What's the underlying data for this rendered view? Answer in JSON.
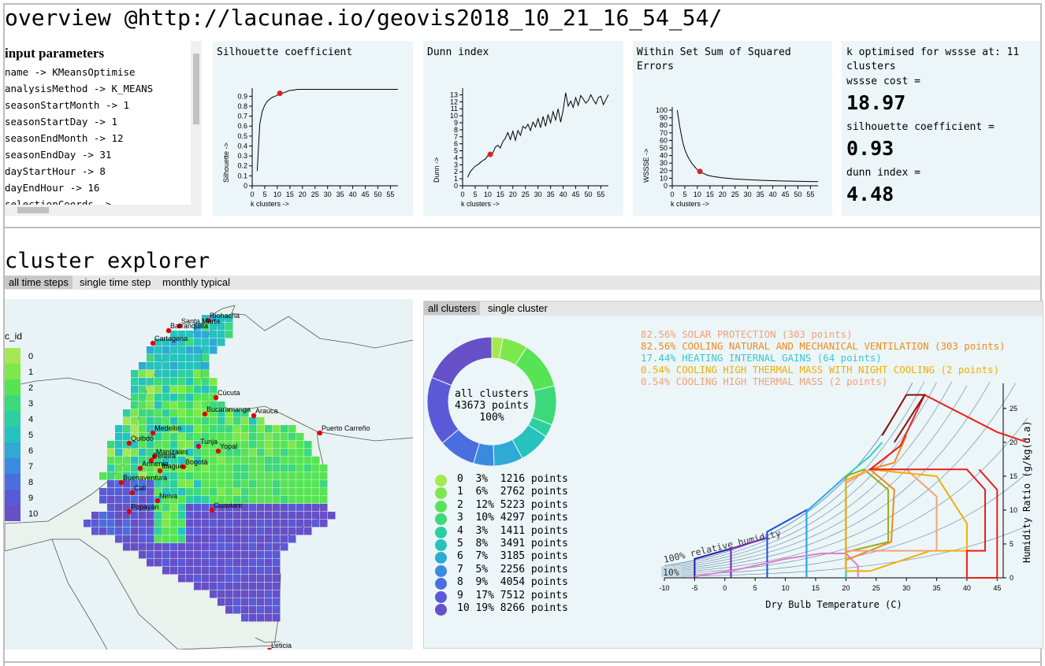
{
  "page": {
    "title": "overview @http://lacunae.io/geovis2018_10_21_16_54_54/"
  },
  "params": {
    "heading": "input parameters",
    "rows": [
      "name -> KMeansOptimise",
      "analysisMethod -> K_MEANS",
      "seasonStartMonth -> 1",
      "seasonStartDay -> 1",
      "seasonEndMonth -> 12",
      "seasonEndDay -> 31",
      "dayStartHour -> 8",
      "dayEndHour -> 16",
      "selectionCoords ->"
    ]
  },
  "charts": {
    "silhouette": {
      "title": "Silhouette coefficient",
      "ylabel": "Silhouette ->",
      "xlabel": "k clusters ->"
    },
    "dunn": {
      "title": "Dunn index",
      "ylabel": "Dunn ->",
      "xlabel": "k clusters ->"
    },
    "wssse": {
      "title": "Within Set Sum of Squared Errors",
      "ylabel": "WSSSE ->",
      "xlabel": "k clusters ->"
    }
  },
  "chart_data": [
    {
      "type": "line",
      "title": "Silhouette coefficient",
      "xlabel": "k clusters ->",
      "ylabel": "Silhouette ->",
      "x": [
        2,
        3,
        4,
        5,
        6,
        7,
        8,
        9,
        10,
        11,
        12,
        13,
        14,
        15,
        16,
        18,
        20,
        25,
        30,
        35,
        40,
        45,
        50,
        55,
        58
      ],
      "values": [
        0.15,
        0.62,
        0.75,
        0.81,
        0.85,
        0.87,
        0.89,
        0.9,
        0.91,
        0.93,
        0.93,
        0.94,
        0.95,
        0.96,
        0.96,
        0.97,
        0.97,
        0.97,
        0.97,
        0.97,
        0.97,
        0.97,
        0.97,
        0.97,
        0.97
      ],
      "xlim": [
        0,
        58
      ],
      "ylim": [
        0,
        0.95
      ],
      "xticks": [
        "0",
        "5",
        "10",
        "15",
        "20",
        "25",
        "30",
        "35",
        "40",
        "45",
        "50",
        "55"
      ],
      "yticks": [
        "0",
        "0.1",
        "0.2",
        "0.3",
        "0.4",
        "0.5",
        "0.6",
        "0.7",
        "0.8",
        "0.9"
      ],
      "highlight": {
        "x": 11,
        "y": 0.93
      }
    },
    {
      "type": "line",
      "title": "Dunn index",
      "xlabel": "k clusters ->",
      "ylabel": "Dunn ->",
      "x": [
        2,
        3,
        4,
        5,
        6,
        7,
        8,
        9,
        10,
        11,
        12,
        13,
        14,
        15,
        16,
        17,
        18,
        19,
        20,
        21,
        22,
        23,
        24,
        25,
        26,
        27,
        28,
        29,
        30,
        31,
        32,
        33,
        34,
        35,
        36,
        37,
        38,
        39,
        40,
        41,
        42,
        43,
        44,
        45,
        46,
        47,
        48,
        49,
        50,
        51,
        52,
        53,
        54,
        55,
        56,
        57,
        58
      ],
      "values": [
        1.2,
        2.0,
        2.4,
        2.8,
        3.0,
        3.3,
        3.6,
        3.8,
        4.3,
        4.48,
        4.7,
        5.5,
        5.8,
        5.4,
        6.3,
        6.8,
        7.6,
        6.6,
        7.8,
        6.5,
        7.9,
        7.2,
        8.5,
        8.2,
        8.8,
        7.9,
        9.1,
        8.4,
        9.6,
        8.3,
        9.9,
        8.5,
        10.2,
        9.0,
        10.6,
        9.4,
        11.0,
        9.1,
        10.8,
        13.3,
        11.4,
        12.1,
        11.2,
        12.6,
        11.5,
        12.9,
        12.4,
        11.8,
        12.2,
        13.0,
        12.3,
        11.7,
        12.6,
        12.8,
        11.6,
        12.3,
        13.0
      ],
      "xlim": [
        0,
        58
      ],
      "ylim": [
        0,
        13.5
      ],
      "xticks": [
        "0",
        "5",
        "10",
        "15",
        "20",
        "25",
        "30",
        "35",
        "40",
        "45",
        "50",
        "55"
      ],
      "yticks": [
        "0",
        "1",
        "2",
        "3",
        "4",
        "5",
        "6",
        "7",
        "8",
        "9",
        "10",
        "11",
        "12",
        "13"
      ],
      "highlight": {
        "x": 11,
        "y": 4.48
      }
    },
    {
      "type": "line",
      "title": "Within Set Sum of Squared Errors",
      "xlabel": "k clusters ->",
      "ylabel": "WSSSE ->",
      "x": [
        2,
        3,
        4,
        5,
        6,
        7,
        8,
        9,
        10,
        11,
        12,
        14,
        16,
        18,
        20,
        25,
        30,
        35,
        40,
        45,
        50,
        55,
        58
      ],
      "values": [
        100,
        78,
        60,
        48,
        40,
        34,
        29,
        25,
        21,
        18.97,
        17,
        14,
        12.5,
        11.5,
        10.5,
        9,
        8,
        7.3,
        6.8,
        6.3,
        5.9,
        5.6,
        5.4
      ],
      "xlim": [
        0,
        58
      ],
      "ylim": [
        0,
        100
      ],
      "xticks": [
        "0",
        "5",
        "10",
        "15",
        "20",
        "25",
        "30",
        "35",
        "40",
        "45",
        "50",
        "55"
      ],
      "yticks": [
        "0",
        "10",
        "20",
        "30",
        "40",
        "50",
        "60",
        "70",
        "80",
        "90",
        "100"
      ],
      "highlight": {
        "x": 11,
        "y": 18.97
      }
    }
  ],
  "kopt": {
    "title": "k optimised for wssse at: 11 clusters",
    "wssse_label": "wssse cost =",
    "wssse_value": "18.97",
    "sil_label": "silhouette coefficient =",
    "sil_value": "0.93",
    "dunn_label": "dunn index =",
    "dunn_value": "4.48"
  },
  "explorer": {
    "title": "cluster explorer",
    "tabs": [
      "all time steps",
      "single time step",
      "monthly typical"
    ],
    "sub_tabs": [
      "all clusters",
      "single cluster"
    ],
    "legend_title": "c_id",
    "color_ids": [
      "0",
      "1",
      "2",
      "3",
      "4",
      "5",
      "6",
      "7",
      "8",
      "9",
      "10"
    ],
    "colors": [
      "#a6e84f",
      "#7de84a",
      "#56e455",
      "#3cd97a",
      "#2ccfa0",
      "#26c2bd",
      "#2eaad4",
      "#3a8bdf",
      "#4a6ee0",
      "#5a5ad8",
      "#6650c8"
    ],
    "cities": [
      "Riohacha",
      "Santa Marta",
      "Barranquilla",
      "Cartagena",
      "Cúcuta",
      "Bucaramanga",
      "Arauca",
      "Puerto Carreño",
      "Medellín",
      "Quibdó",
      "Tunja",
      "Yopal",
      "Manizales",
      "Pereira",
      "Bogotá",
      "Ibagué",
      "Armenia",
      "Buenaventura",
      "Cali",
      "Neiva",
      "Guaviare",
      "Popayán",
      "Leticia"
    ],
    "donut_center": [
      "all clusters",
      "43673 points",
      "100%"
    ],
    "cluster_stats": [
      {
        "id": "0",
        "pct": "3%",
        "points": "1216 points",
        "value": 1216
      },
      {
        "id": "1",
        "pct": "6%",
        "points": "2762 points",
        "value": 2762
      },
      {
        "id": "2",
        "pct": "12%",
        "points": "5223 points",
        "value": 5223
      },
      {
        "id": "3",
        "pct": "10%",
        "points": "4297 points",
        "value": 4297
      },
      {
        "id": "4",
        "pct": "3%",
        "points": "1411 points",
        "value": 1411
      },
      {
        "id": "5",
        "pct": "8%",
        "points": "3491 points",
        "value": 3491
      },
      {
        "id": "6",
        "pct": "7%",
        "points": "3185 points",
        "value": 3185
      },
      {
        "id": "7",
        "pct": "5%",
        "points": "2256 points",
        "value": 2256
      },
      {
        "id": "8",
        "pct": "9%",
        "points": "4054 points",
        "value": 4054
      },
      {
        "id": "9",
        "pct": "17%",
        "points": "7512 points",
        "value": 7512
      },
      {
        "id": "10",
        "pct": "19%",
        "points": "8266 points",
        "value": 8266
      }
    ],
    "strategies": [
      {
        "text": "82.56% SOLAR PROTECTION (303 points)",
        "color": "#f4a07a"
      },
      {
        "text": "82.56% COOLING NATURAL AND MECHANICAL VENTILATION (303 points)",
        "color": "#f08a1c"
      },
      {
        "text": "17.44% HEATING INTERNAL GAINS (64 points)",
        "color": "#3cc7cf"
      },
      {
        "text": "0.54% COOLING HIGH THERMAL MASS WITH NIGHT COOLING (2 points)",
        "color": "#f0b000"
      },
      {
        "text": "0.54% COOLING HIGH THERMAL MASS (2 points)",
        "color": "#f4a07a"
      }
    ],
    "psychro": {
      "xlabel": "Dry Bulb Temperature (C)",
      "ylabel": "Humidity Ratio (g/kg(d.a)",
      "rh100": "100% relative humidity",
      "rh10": "10%",
      "xticks": [
        "-10",
        "-5",
        "0",
        "5",
        "10",
        "15",
        "20",
        "25",
        "30",
        "35",
        "40",
        "45"
      ],
      "yticks": [
        "0",
        "5",
        "10",
        "15",
        "20",
        "25"
      ]
    }
  }
}
